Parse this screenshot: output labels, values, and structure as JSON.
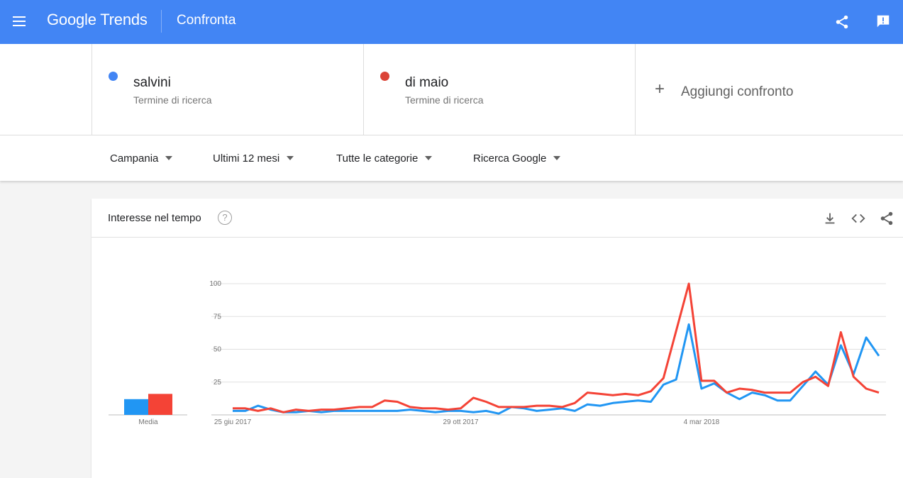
{
  "header": {
    "logo": "Google Trends",
    "page_title": "Confronta",
    "menu_icon": "menu-icon",
    "share_icon": "share-icon",
    "feedback_icon": "feedback-icon",
    "color": "#4285f4"
  },
  "terms": [
    {
      "name": "salvini",
      "type": "Termine di ricerca",
      "color": "#4285f4"
    },
    {
      "name": "di maio",
      "type": "Termine di ricerca",
      "color": "#db4437"
    }
  ],
  "add_compare": {
    "plus": "+",
    "label": "Aggiungi confronto"
  },
  "filters": {
    "region": "Campania",
    "time": "Ultimi 12 mesi",
    "category": "Tutte le categorie",
    "search_type": "Ricerca Google"
  },
  "card": {
    "title": "Interesse nel tempo",
    "help": "?",
    "icons": [
      "download-icon",
      "embed-icon",
      "share-icon"
    ]
  },
  "chart_data": {
    "type": "line",
    "ylim": [
      0,
      100
    ],
    "yticks": [
      "100",
      "75",
      "50",
      "25"
    ],
    "x_labels": [
      "25 giu 2017",
      "29 ott 2017",
      "4 mar 2018"
    ],
    "average_label": "Media",
    "averages": [
      {
        "name": "salvini",
        "value": 12,
        "color": "#2196f3"
      },
      {
        "name": "di maio",
        "value": 16,
        "color": "#f44336"
      }
    ],
    "series": [
      {
        "name": "salvini",
        "color": "#2196f3",
        "values": [
          3,
          3,
          7,
          4,
          2,
          2,
          3,
          2,
          3,
          3,
          3,
          3,
          3,
          3,
          4,
          3,
          2,
          3,
          3,
          2,
          3,
          1,
          6,
          5,
          3,
          4,
          5,
          3,
          8,
          7,
          9,
          10,
          11,
          10,
          23,
          27,
          69,
          20,
          24,
          17,
          12,
          17,
          15,
          11,
          11,
          22,
          33,
          23,
          53,
          31,
          59,
          45
        ]
      },
      {
        "name": "di maio",
        "color": "#f44336",
        "values": [
          5,
          5,
          3,
          5,
          2,
          4,
          3,
          4,
          4,
          5,
          6,
          6,
          11,
          10,
          6,
          5,
          5,
          4,
          5,
          13,
          10,
          6,
          6,
          6,
          7,
          7,
          6,
          9,
          17,
          16,
          15,
          16,
          15,
          18,
          28,
          64,
          100,
          26,
          26,
          17,
          20,
          19,
          17,
          17,
          17,
          25,
          29,
          22,
          63,
          29,
          20,
          17
        ]
      }
    ]
  }
}
